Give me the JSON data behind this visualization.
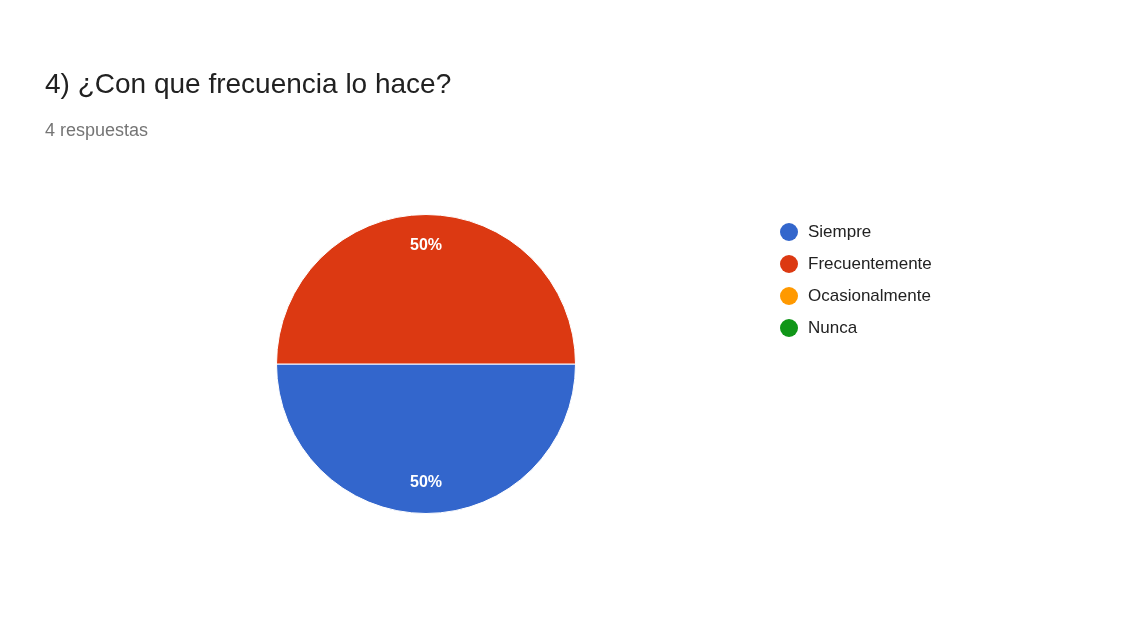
{
  "chart_data": {
    "type": "pie",
    "title": "4) ¿Con que frecuencia lo hace?",
    "subtitle": "4 respuestas",
    "categories": [
      "Siempre",
      "Frecuentemente",
      "Ocasionalmente",
      "Nunca"
    ],
    "values": [
      50,
      50,
      0,
      0
    ],
    "colors": [
      "#3366cc",
      "#dc3912",
      "#ff9900",
      "#109618"
    ],
    "value_labels": [
      "50%",
      "50%",
      null,
      null
    ],
    "legend": "right"
  }
}
